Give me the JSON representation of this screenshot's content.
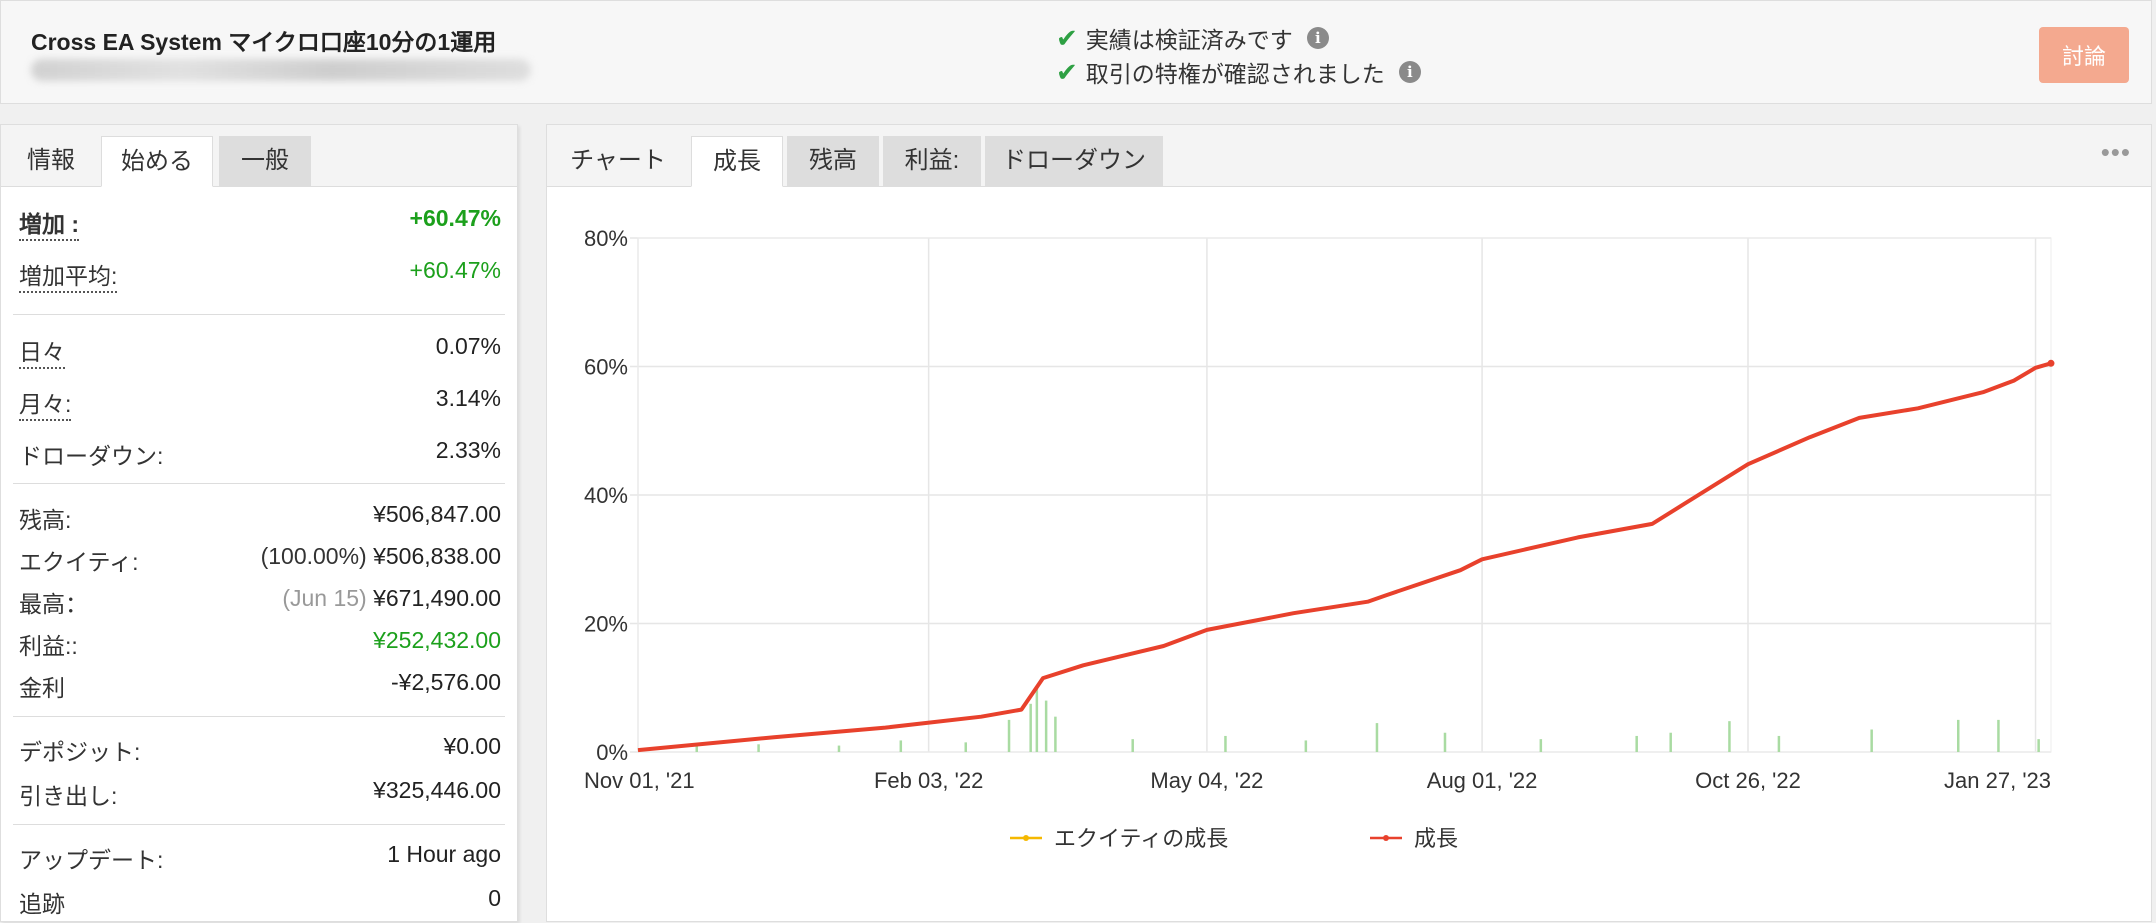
{
  "header": {
    "title": "Cross EA System マイクロ口座10分の1運用",
    "verified_1": "実績は検証済みです",
    "verified_2": "取引の特権が確認されました",
    "discuss_label": "討論"
  },
  "left_tabs": [
    "情報",
    "始める",
    "一般"
  ],
  "stats": {
    "gain_label": "増加 :",
    "gain_value": "+60.47%",
    "abs_gain_label": "増加平均:",
    "abs_gain_value": "+60.47%",
    "daily_label": "日々",
    "daily_value": "0.07%",
    "monthly_label": "月々:",
    "monthly_value": "3.14%",
    "drawdown_label": "ドローダウン:",
    "drawdown_value": "2.33%",
    "balance_label": "残高:",
    "balance_value": "¥506,847.00",
    "equity_label": "エクイティ:",
    "equity_pre": "(100.00%)",
    "equity_value": "¥506,838.00",
    "highest_label": "最高：",
    "highest_pre": "(Jun 15)",
    "highest_value": "¥671,490.00",
    "profit_label": "利益::",
    "profit_value": "¥252,432.00",
    "interest_label": "金利",
    "interest_value": "-¥2,576.00",
    "deposits_label": "デポジット:",
    "deposits_value": "¥0.00",
    "withdrawals_label": "引き出し:",
    "withdrawals_value": "¥325,446.00",
    "updated_label": "アップデート:",
    "updated_value": "1 Hour ago",
    "tracking_label": "追跡",
    "tracking_value": "0"
  },
  "right_tabs": [
    "チャート",
    "成長",
    "残高",
    "利益:",
    "ドローダウン"
  ],
  "colors": {
    "growth": "#e8412c",
    "equity": "#f5b800",
    "bars": "#a9dba2",
    "green": "#1ca01c"
  },
  "chart_data": {
    "type": "line",
    "x_tick_labels": [
      "Nov 01, '21",
      "Feb 03, '22",
      "May 04, '22",
      "Aug 01, '22",
      "Oct 26, '22",
      "Jan 27, '23"
    ],
    "x_tick_dates": [
      "2021-11-01",
      "2022-02-03",
      "2022-05-04",
      "2022-08-01",
      "2022-10-26",
      "2023-01-27"
    ],
    "xlim": [
      "2021-11-01",
      "2023-02-01"
    ],
    "ylim": [
      0,
      80
    ],
    "y_ticks": [
      0,
      20,
      40,
      60,
      80
    ],
    "y_tick_labels": [
      "0%",
      "20%",
      "40%",
      "60%",
      "80%"
    ],
    "grid": true,
    "legend": "bottom",
    "series": [
      {
        "name": "エクイティの成長",
        "color": "#f5b800",
        "x": [
          "2021-11-01",
          "2021-12-15",
          "2022-01-20",
          "2022-02-20",
          "2022-03-05",
          "2022-03-12",
          "2022-03-25",
          "2022-04-20",
          "2022-05-04",
          "2022-06-01",
          "2022-06-25",
          "2022-07-01",
          "2022-07-25",
          "2022-08-01",
          "2022-09-01",
          "2022-09-25",
          "2022-10-05",
          "2022-10-26",
          "2022-11-15",
          "2022-12-01",
          "2022-12-20",
          "2023-01-10",
          "2023-01-20",
          "2023-01-27",
          "2023-02-01"
        ],
        "y": [
          0.3,
          2.3,
          3.8,
          5.5,
          6.6,
          11.5,
          13.5,
          16.5,
          19.0,
          21.6,
          23.4,
          24.4,
          28.3,
          30.0,
          33.4,
          35.5,
          38.5,
          44.8,
          49.0,
          52.0,
          53.5,
          56.0,
          57.8,
          59.8,
          60.5
        ]
      },
      {
        "name": "成長",
        "color": "#e8412c",
        "x": [
          "2021-11-01",
          "2021-12-15",
          "2022-01-20",
          "2022-02-20",
          "2022-03-05",
          "2022-03-12",
          "2022-03-25",
          "2022-04-20",
          "2022-05-04",
          "2022-06-01",
          "2022-06-25",
          "2022-07-01",
          "2022-07-25",
          "2022-08-01",
          "2022-09-01",
          "2022-09-25",
          "2022-10-05",
          "2022-10-26",
          "2022-11-15",
          "2022-12-01",
          "2022-12-20",
          "2023-01-10",
          "2023-01-20",
          "2023-01-27",
          "2023-02-01"
        ],
        "y": [
          0.3,
          2.3,
          3.8,
          5.5,
          6.6,
          11.5,
          13.5,
          16.5,
          19.0,
          21.6,
          23.4,
          24.4,
          28.3,
          30.0,
          33.4,
          35.5,
          38.5,
          44.8,
          49.0,
          52.0,
          53.5,
          56.0,
          57.8,
          59.8,
          60.5
        ]
      }
    ],
    "daily_profit_bars": {
      "x": [
        "2021-11-20",
        "2021-12-10",
        "2022-01-05",
        "2022-01-25",
        "2022-02-15",
        "2022-03-01",
        "2022-03-08",
        "2022-03-10",
        "2022-03-13",
        "2022-03-16",
        "2022-04-10",
        "2022-05-10",
        "2022-06-05",
        "2022-06-28",
        "2022-07-20",
        "2022-08-20",
        "2022-09-20",
        "2022-10-01",
        "2022-10-20",
        "2022-11-05",
        "2022-12-05",
        "2023-01-02",
        "2023-01-15",
        "2023-01-28"
      ],
      "y": [
        1.0,
        1.2,
        1.0,
        1.8,
        1.5,
        5.0,
        7.5,
        10.0,
        8.0,
        5.5,
        2.0,
        2.5,
        1.8,
        4.5,
        3.0,
        2.0,
        2.5,
        3.0,
        4.8,
        2.5,
        3.5,
        5.0,
        5.0,
        2.0
      ]
    }
  }
}
